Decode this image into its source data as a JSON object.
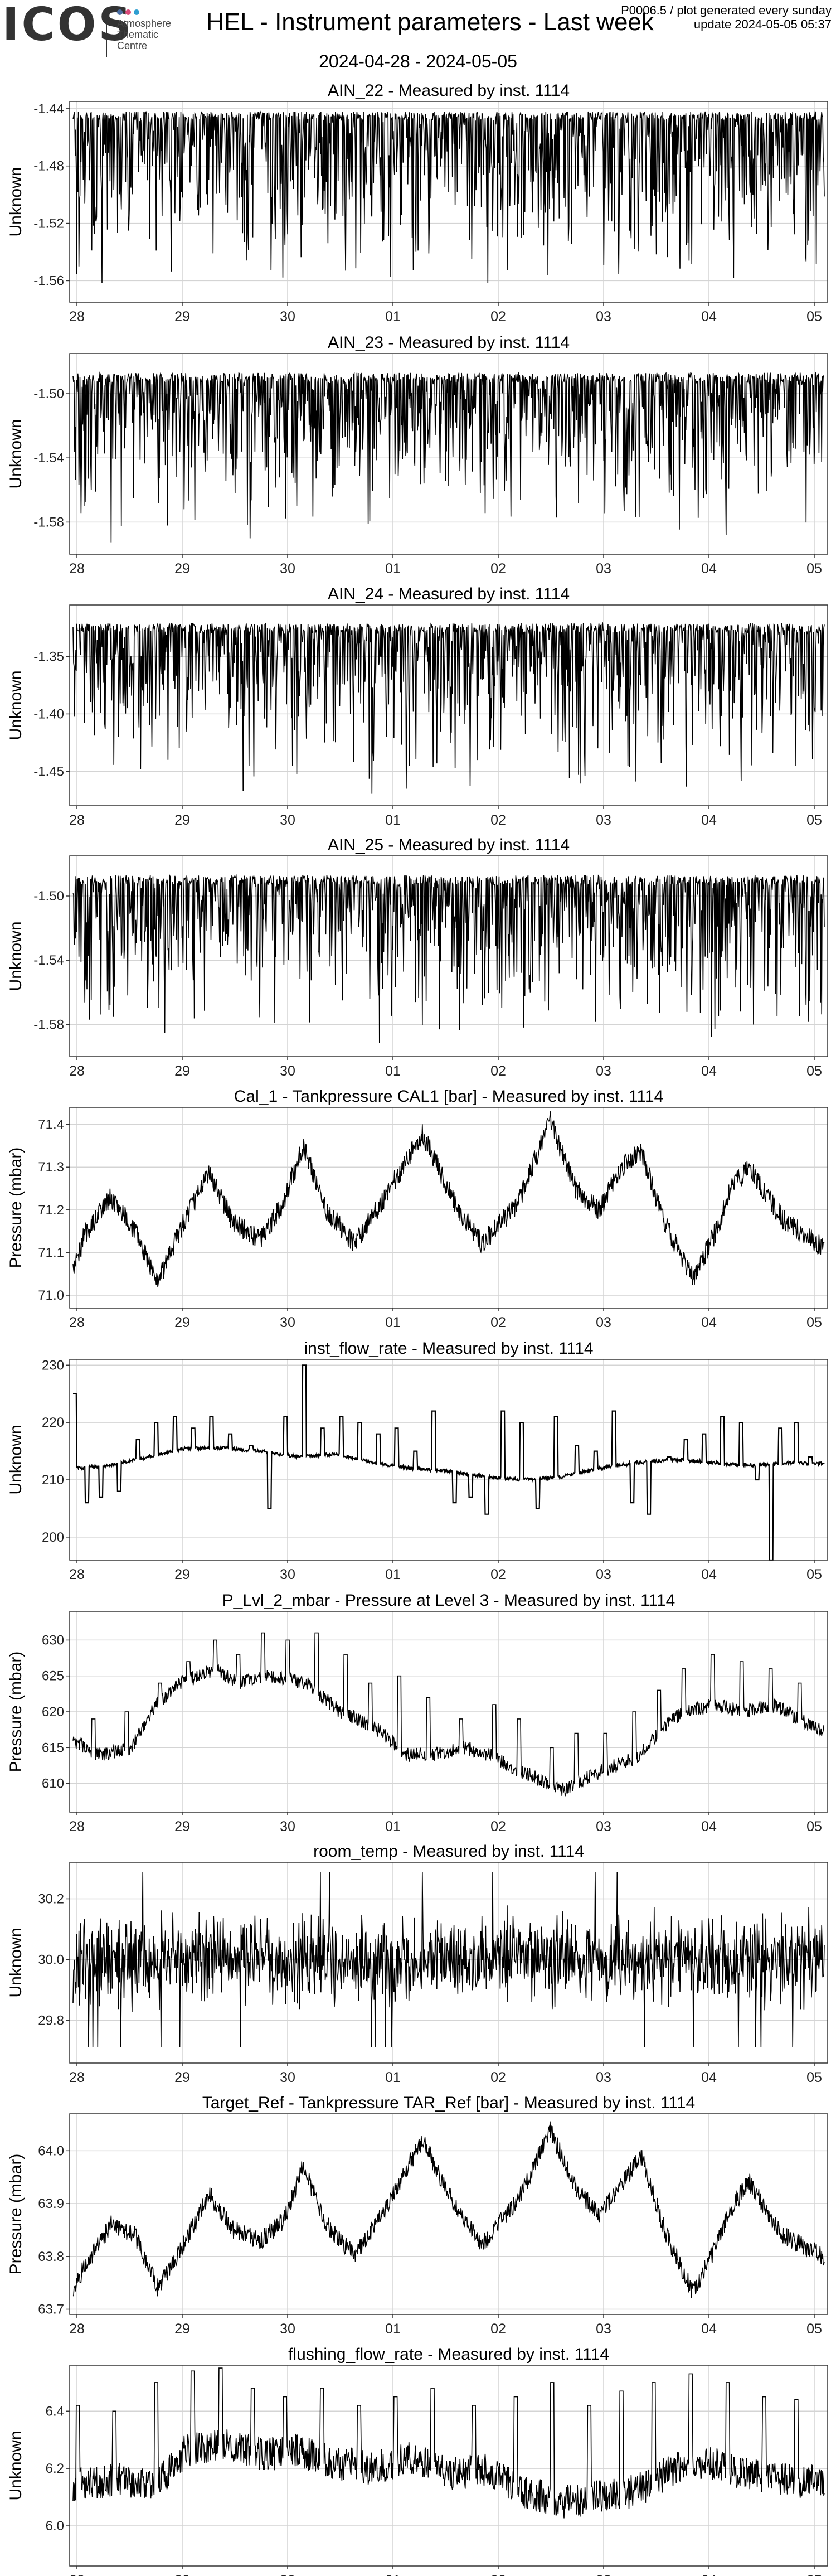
{
  "header": {
    "logo": "ICOS",
    "logo_sub": [
      "Atmosphere",
      "Thematic",
      "Centre"
    ],
    "logo_dot_colors": [
      "#4a6fa5",
      "#d94a7a",
      "#2f9ed1"
    ],
    "title": "HEL - Instrument parameters - Last week",
    "date_range": "2024-04-28 - 2024-05-05",
    "info_line1": "P0006.5 / plot generated every sunday",
    "info_line2": "update  2024-05-05 05:37"
  },
  "x_tick_labels": [
    "28",
    "29",
    "30",
    "01",
    "02",
    "03",
    "04",
    "05"
  ],
  "chart_data": [
    {
      "type": "line",
      "title": "AIN_22 - Measured by inst. 1114",
      "ylabel": "Unknown",
      "ylim": [
        -1.575,
        -1.435
      ],
      "yticks": [
        -1.44,
        -1.48,
        -1.52,
        -1.56
      ],
      "ytick_labels": [
        "-1.44",
        "-1.48",
        "-1.52",
        "-1.56"
      ],
      "grid": true,
      "pattern": "spiky_down",
      "base": -1.445,
      "noise": 0.003,
      "spike_min": -1.57,
      "x_range": [
        "2024-04-28",
        "2024-05-05"
      ]
    },
    {
      "type": "line",
      "title": "AIN_23 - Measured by inst. 1114",
      "ylabel": "Unknown",
      "ylim": [
        -1.6,
        -1.475
      ],
      "yticks": [
        -1.5,
        -1.54,
        -1.58
      ],
      "ytick_labels": [
        "-1.50",
        "-1.54",
        "-1.58"
      ],
      "grid": true,
      "pattern": "spiky_down",
      "base": -1.49,
      "noise": 0.003,
      "spike_min": -1.595,
      "x_range": [
        "2024-04-28",
        "2024-05-05"
      ]
    },
    {
      "type": "line",
      "title": "AIN_24 - Measured by inst. 1114",
      "ylabel": "Unknown",
      "ylim": [
        -1.48,
        -1.305
      ],
      "yticks": [
        -1.35,
        -1.4,
        -1.45
      ],
      "ytick_labels": [
        "-1.35",
        "-1.40",
        "-1.45"
      ],
      "grid": true,
      "pattern": "spiky_down",
      "base": -1.325,
      "noise": 0.004,
      "spike_min": -1.475,
      "x_range": [
        "2024-04-28",
        "2024-05-05"
      ]
    },
    {
      "type": "line",
      "title": "AIN_25 - Measured by inst. 1114",
      "ylabel": "Unknown",
      "ylim": [
        -1.6,
        -1.475
      ],
      "yticks": [
        -1.5,
        -1.54,
        -1.58
      ],
      "ytick_labels": [
        "-1.50",
        "-1.54",
        "-1.58"
      ],
      "grid": true,
      "pattern": "spiky_down",
      "base": -1.49,
      "noise": 0.003,
      "spike_min": -1.595,
      "x_range": [
        "2024-04-28",
        "2024-05-05"
      ]
    },
    {
      "type": "line",
      "title": "Cal_1 - Tankpressure CAL1 [bar] - Measured by inst. 1114",
      "ylabel": "Pressure (mbar)",
      "ylim": [
        70.97,
        71.44
      ],
      "yticks": [
        71.0,
        71.1,
        71.2,
        71.3,
        71.4
      ],
      "ytick_labels": [
        "71.0",
        "71.1",
        "71.2",
        "71.3",
        "71.4"
      ],
      "grid": true,
      "pattern": "band",
      "noise": 0.025,
      "points": [
        [
          0,
          71.05
        ],
        [
          0.12,
          71.14
        ],
        [
          0.4,
          71.23
        ],
        [
          0.66,
          71.15
        ],
        [
          0.9,
          71.03
        ],
        [
          1.2,
          71.18
        ],
        [
          1.45,
          71.29
        ],
        [
          1.7,
          71.17
        ],
        [
          2.0,
          71.13
        ],
        [
          2.25,
          71.22
        ],
        [
          2.45,
          71.35
        ],
        [
          2.7,
          71.2
        ],
        [
          3.0,
          71.12
        ],
        [
          3.35,
          71.24
        ],
        [
          3.72,
          71.38
        ],
        [
          4.05,
          71.22
        ],
        [
          4.35,
          71.12
        ],
        [
          4.75,
          71.22
        ],
        [
          5.08,
          71.41
        ],
        [
          5.35,
          71.25
        ],
        [
          5.6,
          71.2
        ],
        [
          5.85,
          71.3
        ],
        [
          6.05,
          71.34
        ],
        [
          6.3,
          71.17
        ],
        [
          6.6,
          71.04
        ],
        [
          6.85,
          71.15
        ],
        [
          7.0,
          71.25
        ],
        [
          7.2,
          71.3
        ],
        [
          7.55,
          71.18
        ],
        [
          8.0,
          71.11
        ]
      ]
    },
    {
      "type": "line",
      "title": "inst_flow_rate - Measured by inst. 1114",
      "ylabel": "Unknown",
      "ylim": [
        196,
        231
      ],
      "yticks": [
        200,
        210,
        220,
        230
      ],
      "ytick_labels": [
        "200",
        "210",
        "220",
        "230"
      ],
      "grid": true,
      "pattern": "thin_spikes",
      "noise": 0.3,
      "points": [
        [
          0,
          212
        ],
        [
          0.5,
          212.5
        ],
        [
          1.0,
          214
        ],
        [
          1.5,
          215.5
        ],
        [
          2.0,
          215.5
        ],
        [
          2.5,
          215
        ],
        [
          3.0,
          214
        ],
        [
          3.5,
          214.5
        ],
        [
          4.0,
          213
        ],
        [
          4.5,
          212
        ],
        [
          5.0,
          211.5
        ],
        [
          5.5,
          210.5
        ],
        [
          6.0,
          210
        ],
        [
          6.5,
          210.5
        ],
        [
          7.0,
          212
        ],
        [
          7.5,
          213
        ],
        [
          8.0,
          213.5
        ],
        [
          8.5,
          213
        ],
        [
          9.0,
          212.5
        ],
        [
          9.5,
          213
        ],
        [
          10.0,
          212.8
        ]
      ],
      "spikes": [
        [
          0.04,
          225
        ],
        [
          0.3,
          206
        ],
        [
          0.6,
          207
        ],
        [
          1.0,
          208
        ],
        [
          1.4,
          217
        ],
        [
          1.8,
          220
        ],
        [
          2.2,
          221
        ],
        [
          2.6,
          219
        ],
        [
          3.0,
          221
        ],
        [
          3.4,
          218
        ],
        [
          3.85,
          216
        ],
        [
          4.25,
          205
        ],
        [
          4.6,
          221
        ],
        [
          5.0,
          230
        ],
        [
          5.4,
          219
        ],
        [
          5.8,
          221
        ],
        [
          6.2,
          220
        ],
        [
          6.6,
          218
        ],
        [
          7.0,
          219
        ],
        [
          7.4,
          215
        ],
        [
          7.8,
          222
        ],
        [
          8.25,
          206
        ],
        [
          8.6,
          207
        ],
        [
          8.95,
          204
        ],
        [
          9.3,
          222
        ],
        [
          9.7,
          220
        ],
        [
          10.05,
          205
        ],
        [
          10.45,
          221
        ],
        [
          10.9,
          216
        ],
        [
          11.3,
          215
        ],
        [
          11.7,
          222
        ],
        [
          12.1,
          206
        ],
        [
          12.45,
          204
        ],
        [
          12.9,
          214
        ],
        [
          13.25,
          217
        ],
        [
          13.65,
          218
        ],
        [
          14.05,
          221
        ],
        [
          14.45,
          220
        ],
        [
          14.8,
          210
        ],
        [
          15.1,
          196
        ],
        [
          15.3,
          219
        ],
        [
          15.65,
          220
        ],
        [
          15.95,
          214
        ]
      ]
    },
    {
      "type": "line",
      "title": "P_Lvl_2_mbar - Pressure at Level 3 - Measured by inst. 1114",
      "ylabel": "Pressure (mbar)",
      "ylim": [
        606,
        634
      ],
      "yticks": [
        610,
        615,
        620,
        625,
        630
      ],
      "ytick_labels": [
        "610",
        "615",
        "620",
        "625",
        "630"
      ],
      "grid": true,
      "pattern": "band_spikes",
      "noise": 1.0,
      "points": [
        [
          0,
          616
        ],
        [
          0.3,
          614
        ],
        [
          0.7,
          615
        ],
        [
          1.0,
          621
        ],
        [
          1.3,
          624
        ],
        [
          1.7,
          626
        ],
        [
          2.0,
          624
        ],
        [
          2.4,
          625
        ],
        [
          2.8,
          624
        ],
        [
          3.0,
          622
        ],
        [
          3.2,
          620
        ],
        [
          3.6,
          618
        ],
        [
          4.0,
          614
        ],
        [
          4.3,
          614
        ],
        [
          4.7,
          615
        ],
        [
          5.0,
          614
        ],
        [
          5.3,
          612
        ],
        [
          5.7,
          610
        ],
        [
          5.9,
          609
        ],
        [
          6.0,
          610
        ],
        [
          6.4,
          612
        ],
        [
          6.8,
          614
        ],
        [
          7.0,
          617
        ],
        [
          7.3,
          620
        ],
        [
          7.7,
          621
        ],
        [
          8.0,
          620
        ],
        [
          8.4,
          621
        ],
        [
          8.7,
          619
        ],
        [
          9.0,
          617
        ]
      ],
      "spikes": [
        [
          0.25,
          619
        ],
        [
          0.65,
          620
        ],
        [
          1.05,
          624
        ],
        [
          1.4,
          627
        ],
        [
          1.72,
          630
        ],
        [
          2.0,
          628
        ],
        [
          2.3,
          631
        ],
        [
          2.6,
          630
        ],
        [
          2.95,
          631
        ],
        [
          3.3,
          628
        ],
        [
          3.6,
          624
        ],
        [
          3.95,
          625
        ],
        [
          4.3,
          622
        ],
        [
          4.7,
          619
        ],
        [
          5.1,
          621
        ],
        [
          5.4,
          619
        ],
        [
          5.8,
          615
        ],
        [
          6.1,
          617
        ],
        [
          6.45,
          617
        ],
        [
          6.8,
          620
        ],
        [
          7.1,
          623
        ],
        [
          7.4,
          626
        ],
        [
          7.75,
          628
        ],
        [
          8.1,
          627
        ],
        [
          8.45,
          626
        ],
        [
          8.8,
          624
        ]
      ]
    },
    {
      "type": "line",
      "title": "room_temp - Measured by inst. 1114",
      "ylabel": "Unknown",
      "ylim": [
        29.66,
        30.32
      ],
      "yticks": [
        29.8,
        30.0,
        30.2
      ],
      "ytick_labels": [
        "29.8",
        "30.0",
        "30.2"
      ],
      "grid": true,
      "pattern": "noise_band",
      "base": 30.0,
      "noise": 0.09,
      "x_range": [
        "2024-04-28",
        "2024-05-05"
      ]
    },
    {
      "type": "line",
      "title": "Target_Ref - Tankpressure TAR_Ref [bar] - Measured by inst. 1114",
      "ylabel": "Pressure (mbar)",
      "ylim": [
        63.69,
        64.07
      ],
      "yticks": [
        63.7,
        63.8,
        63.9,
        64.0
      ],
      "ytick_labels": [
        "63.7",
        "63.8",
        "63.9",
        "64.0"
      ],
      "grid": true,
      "pattern": "band",
      "noise": 0.018,
      "points": [
        [
          0,
          63.74
        ],
        [
          0.12,
          63.78
        ],
        [
          0.4,
          63.86
        ],
        [
          0.66,
          63.84
        ],
        [
          0.9,
          63.74
        ],
        [
          1.2,
          63.83
        ],
        [
          1.45,
          63.92
        ],
        [
          1.7,
          63.85
        ],
        [
          2.0,
          63.83
        ],
        [
          2.25,
          63.87
        ],
        [
          2.45,
          63.97
        ],
        [
          2.7,
          63.86
        ],
        [
          3.0,
          63.8
        ],
        [
          3.35,
          63.9
        ],
        [
          3.72,
          64.02
        ],
        [
          4.05,
          63.9
        ],
        [
          4.35,
          63.82
        ],
        [
          4.75,
          63.91
        ],
        [
          5.08,
          64.04
        ],
        [
          5.35,
          63.93
        ],
        [
          5.6,
          63.88
        ],
        [
          5.85,
          63.94
        ],
        [
          6.05,
          63.99
        ],
        [
          6.3,
          63.85
        ],
        [
          6.6,
          63.73
        ],
        [
          6.85,
          63.82
        ],
        [
          7.0,
          63.89
        ],
        [
          7.2,
          63.94
        ],
        [
          7.55,
          63.84
        ],
        [
          8.0,
          63.8
        ]
      ]
    },
    {
      "type": "line",
      "title": "flushing_flow_rate - Measured by inst. 1114",
      "ylabel": "Unknown",
      "ylim": [
        5.86,
        6.56
      ],
      "yticks": [
        6.0,
        6.2,
        6.4
      ],
      "ytick_labels": [
        "6.0",
        "6.2",
        "6.4"
      ],
      "grid": true,
      "pattern": "noise_spikes",
      "noise": 0.06,
      "points": [
        [
          0,
          6.14
        ],
        [
          0.5,
          6.16
        ],
        [
          0.9,
          6.15
        ],
        [
          1.2,
          6.26
        ],
        [
          1.6,
          6.28
        ],
        [
          2.0,
          6.25
        ],
        [
          2.4,
          6.26
        ],
        [
          2.8,
          6.22
        ],
        [
          3.2,
          6.2
        ],
        [
          3.6,
          6.24
        ],
        [
          4.0,
          6.18
        ],
        [
          4.4,
          6.2
        ],
        [
          4.8,
          6.12
        ],
        [
          5.2,
          6.08
        ],
        [
          5.6,
          6.1
        ],
        [
          6.0,
          6.12
        ],
        [
          6.4,
          6.2
        ],
        [
          6.8,
          6.22
        ],
        [
          7.2,
          6.18
        ],
        [
          7.6,
          6.16
        ],
        [
          8.0,
          6.15
        ]
      ],
      "spikes": [
        [
          0.05,
          6.42
        ],
        [
          0.45,
          6.4
        ],
        [
          0.9,
          6.5
        ],
        [
          1.3,
          6.54
        ],
        [
          1.6,
          6.55
        ],
        [
          1.95,
          6.48
        ],
        [
          2.3,
          6.45
        ],
        [
          2.7,
          6.48
        ],
        [
          3.1,
          6.42
        ],
        [
          3.5,
          6.45
        ],
        [
          3.9,
          6.48
        ],
        [
          4.35,
          6.42
        ],
        [
          4.8,
          6.45
        ],
        [
          5.2,
          6.5
        ],
        [
          5.6,
          6.42
        ],
        [
          5.95,
          6.47
        ],
        [
          6.3,
          6.5
        ],
        [
          6.7,
          6.53
        ],
        [
          7.1,
          6.5
        ],
        [
          7.5,
          6.45
        ],
        [
          7.85,
          6.44
        ]
      ]
    }
  ]
}
